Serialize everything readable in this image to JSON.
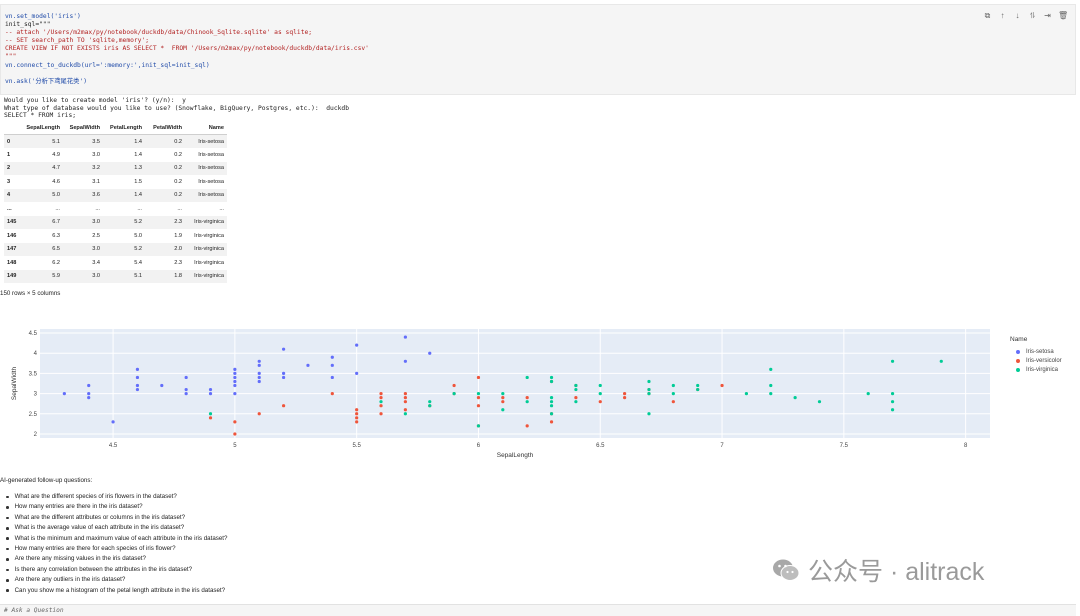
{
  "code_cell": {
    "lines": [
      {
        "text": "vn.set_model('iris')",
        "kind": "call"
      },
      {
        "text": "init_sql=\"\"\"",
        "kind": "plain"
      },
      {
        "text": "-- attach '/Users/m2max/py/notebook/duckdb/data/Chinook_Sqlite.sqlite' as sqlite;",
        "kind": "comment"
      },
      {
        "text": "-- SET search_path TO 'sqlite,memory';",
        "kind": "comment"
      },
      {
        "text": "CREATE VIEW IF NOT EXISTS iris AS SELECT *  FROM '/Users/m2max/py/notebook/duckdb/data/iris.csv'",
        "kind": "str"
      },
      {
        "text": "\"\"\"",
        "kind": "str"
      },
      {
        "text": "vn.connect_to_duckdb(url=':memory:',init_sql=init_sql)",
        "kind": "call"
      },
      {
        "text": "",
        "kind": "plain"
      },
      {
        "text": "vn.ask('分析下鸢尾花类')",
        "kind": "call"
      }
    ],
    "toolbar": [
      "copy-icon",
      "arrow-up-icon",
      "arrow-down-icon",
      "merge-icon",
      "format-icon",
      "trash-icon"
    ],
    "toolbar_glyphs": [
      "⧉",
      "↑",
      "↓",
      "⥮",
      "⇥",
      "🗑"
    ]
  },
  "output": {
    "lines": [
      "Would you like to create model 'iris'? (y/n):  y",
      "What type of database would you like to use? (Snowflake, BigQuery, Postgres, etc.):  duckdb",
      "SELECT * FROM iris;"
    ]
  },
  "table": {
    "columns": [
      "",
      "SepalLength",
      "SepalWidth",
      "PetalLength",
      "PetalWidth",
      "Name"
    ],
    "rows": [
      [
        "0",
        "5.1",
        "3.5",
        "1.4",
        "0.2",
        "Iris-setosa"
      ],
      [
        "1",
        "4.9",
        "3.0",
        "1.4",
        "0.2",
        "Iris-setosa"
      ],
      [
        "2",
        "4.7",
        "3.2",
        "1.3",
        "0.2",
        "Iris-setosa"
      ],
      [
        "3",
        "4.6",
        "3.1",
        "1.5",
        "0.2",
        "Iris-setosa"
      ],
      [
        "4",
        "5.0",
        "3.6",
        "1.4",
        "0.2",
        "Iris-setosa"
      ],
      [
        "...",
        "...",
        "...",
        "...",
        "...",
        "..."
      ],
      [
        "145",
        "6.7",
        "3.0",
        "5.2",
        "2.3",
        "Iris-virginica"
      ],
      [
        "146",
        "6.3",
        "2.5",
        "5.0",
        "1.9",
        "Iris-virginica"
      ],
      [
        "147",
        "6.5",
        "3.0",
        "5.2",
        "2.0",
        "Iris-virginica"
      ],
      [
        "148",
        "6.2",
        "3.4",
        "5.4",
        "2.3",
        "Iris-virginica"
      ],
      [
        "149",
        "5.9",
        "3.0",
        "5.1",
        "1.8",
        "Iris-virginica"
      ]
    ],
    "summary": "150 rows × 5 columns"
  },
  "chart_data": {
    "type": "scatter",
    "xlabel": "SepalLength",
    "ylabel": "SepalWidth",
    "xlim": [
      4.2,
      8.1
    ],
    "ylim": [
      1.9,
      4.6
    ],
    "xticks": [
      "4.5",
      "5",
      "5.5",
      "6",
      "6.5",
      "7",
      "7.5",
      "8"
    ],
    "yticks": [
      "2",
      "2.5",
      "3",
      "3.5",
      "4",
      "4.5"
    ],
    "grid": true,
    "background": "#e5ecf6",
    "legend": {
      "title": "Name",
      "position": "right"
    },
    "series": [
      {
        "name": "Iris-setosa",
        "color": "#636efa",
        "points": [
          [
            4.3,
            3.0
          ],
          [
            4.4,
            2.9
          ],
          [
            4.4,
            3.0
          ],
          [
            4.4,
            3.2
          ],
          [
            4.5,
            2.3
          ],
          [
            4.6,
            3.1
          ],
          [
            4.6,
            3.2
          ],
          [
            4.6,
            3.4
          ],
          [
            4.6,
            3.6
          ],
          [
            4.7,
            3.2
          ],
          [
            4.8,
            3.0
          ],
          [
            4.8,
            3.1
          ],
          [
            4.8,
            3.4
          ],
          [
            4.9,
            3.0
          ],
          [
            4.9,
            3.1
          ],
          [
            5.0,
            3.0
          ],
          [
            5.0,
            3.2
          ],
          [
            5.0,
            3.3
          ],
          [
            5.0,
            3.4
          ],
          [
            5.0,
            3.5
          ],
          [
            5.0,
            3.6
          ],
          [
            5.1,
            3.3
          ],
          [
            5.1,
            3.4
          ],
          [
            5.1,
            3.5
          ],
          [
            5.1,
            3.7
          ],
          [
            5.1,
            3.8
          ],
          [
            5.2,
            3.4
          ],
          [
            5.2,
            3.5
          ],
          [
            5.2,
            4.1
          ],
          [
            5.3,
            3.7
          ],
          [
            5.4,
            3.4
          ],
          [
            5.4,
            3.7
          ],
          [
            5.4,
            3.9
          ],
          [
            5.5,
            3.5
          ],
          [
            5.5,
            4.2
          ],
          [
            5.7,
            3.8
          ],
          [
            5.7,
            4.4
          ],
          [
            5.8,
            4.0
          ]
        ]
      },
      {
        "name": "Iris-versicolor",
        "color": "#ef553b",
        "points": [
          [
            4.9,
            2.4
          ],
          [
            5.0,
            2.0
          ],
          [
            5.0,
            2.3
          ],
          [
            5.1,
            2.5
          ],
          [
            5.2,
            2.7
          ],
          [
            5.4,
            3.0
          ],
          [
            5.5,
            2.3
          ],
          [
            5.5,
            2.4
          ],
          [
            5.5,
            2.5
          ],
          [
            5.5,
            2.6
          ],
          [
            5.6,
            2.5
          ],
          [
            5.6,
            2.7
          ],
          [
            5.6,
            2.9
          ],
          [
            5.6,
            3.0
          ],
          [
            5.7,
            2.6
          ],
          [
            5.7,
            2.8
          ],
          [
            5.7,
            2.9
          ],
          [
            5.7,
            3.0
          ],
          [
            5.8,
            2.7
          ],
          [
            5.9,
            3.0
          ],
          [
            5.9,
            3.2
          ],
          [
            6.0,
            2.2
          ],
          [
            6.0,
            2.7
          ],
          [
            6.0,
            2.9
          ],
          [
            6.0,
            3.4
          ],
          [
            6.1,
            2.8
          ],
          [
            6.1,
            2.9
          ],
          [
            6.2,
            2.2
          ],
          [
            6.2,
            2.9
          ],
          [
            6.3,
            2.3
          ],
          [
            6.3,
            2.5
          ],
          [
            6.3,
            3.3
          ],
          [
            6.4,
            2.9
          ],
          [
            6.4,
            3.2
          ],
          [
            6.5,
            2.8
          ],
          [
            6.6,
            2.9
          ],
          [
            6.6,
            3.0
          ],
          [
            6.7,
            3.0
          ],
          [
            6.7,
            3.1
          ],
          [
            6.8,
            2.8
          ],
          [
            6.9,
            3.1
          ],
          [
            7.0,
            3.2
          ]
        ]
      },
      {
        "name": "Iris-virginica",
        "color": "#00cc96",
        "points": [
          [
            4.9,
            2.5
          ],
          [
            5.6,
            2.8
          ],
          [
            5.7,
            2.5
          ],
          [
            5.8,
            2.7
          ],
          [
            5.8,
            2.8
          ],
          [
            5.9,
            3.0
          ],
          [
            6.0,
            2.2
          ],
          [
            6.0,
            3.0
          ],
          [
            6.1,
            2.6
          ],
          [
            6.1,
            3.0
          ],
          [
            6.2,
            2.8
          ],
          [
            6.2,
            3.4
          ],
          [
            6.3,
            2.5
          ],
          [
            6.3,
            2.7
          ],
          [
            6.3,
            2.8
          ],
          [
            6.3,
            2.9
          ],
          [
            6.3,
            3.3
          ],
          [
            6.3,
            3.4
          ],
          [
            6.4,
            2.8
          ],
          [
            6.4,
            3.1
          ],
          [
            6.4,
            3.2
          ],
          [
            6.5,
            3.0
          ],
          [
            6.5,
            3.2
          ],
          [
            6.7,
            2.5
          ],
          [
            6.7,
            3.0
          ],
          [
            6.7,
            3.1
          ],
          [
            6.7,
            3.3
          ],
          [
            6.8,
            3.0
          ],
          [
            6.8,
            3.2
          ],
          [
            6.9,
            3.1
          ],
          [
            6.9,
            3.2
          ],
          [
            7.1,
            3.0
          ],
          [
            7.2,
            3.0
          ],
          [
            7.2,
            3.2
          ],
          [
            7.2,
            3.6
          ],
          [
            7.3,
            2.9
          ],
          [
            7.4,
            2.8
          ],
          [
            7.6,
            3.0
          ],
          [
            7.7,
            2.6
          ],
          [
            7.7,
            2.8
          ],
          [
            7.7,
            3.0
          ],
          [
            7.7,
            3.8
          ],
          [
            7.9,
            3.8
          ]
        ]
      }
    ]
  },
  "followup": {
    "title": "AI-generated follow-up questions:",
    "items": [
      "What are the different species of iris flowers in the dataset?",
      "How many entries are there in the iris dataset?",
      "What are the different attributes or columns in the iris dataset?",
      "What is the average value of each attribute in the iris dataset?",
      "What is the minimum and maximum value of each attribute in the iris dataset?",
      "How many entries are there for each species of iris flower?",
      "Are there any missing values in the iris dataset?",
      "Is there any correlation between the attributes in the iris dataset?",
      "Are there any outliers in the iris dataset?",
      "Can you show me a histogram of the petal length attribute in the iris dataset?"
    ]
  },
  "watermark": {
    "text": "公众号 · alitrack",
    "icon": "wechat-icon"
  },
  "ask_cell": {
    "text": "# Ask a Question"
  }
}
